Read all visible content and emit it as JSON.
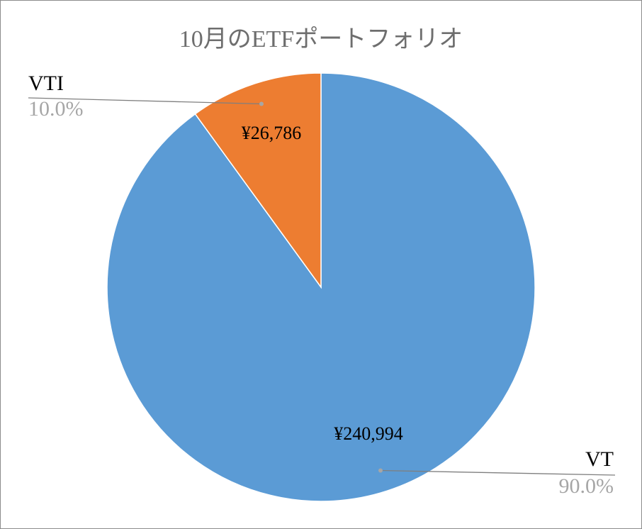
{
  "chart_data": {
    "type": "pie",
    "title": "10月のETFポートフォリオ",
    "categories": [
      "VT",
      "VTI"
    ],
    "values": [
      240994,
      26786
    ],
    "value_labels": [
      "¥240,994",
      "¥26,786"
    ],
    "percent_labels": [
      "90.0%",
      "10.0%"
    ],
    "colors": [
      "#5b9bd5",
      "#ed7d31"
    ]
  }
}
